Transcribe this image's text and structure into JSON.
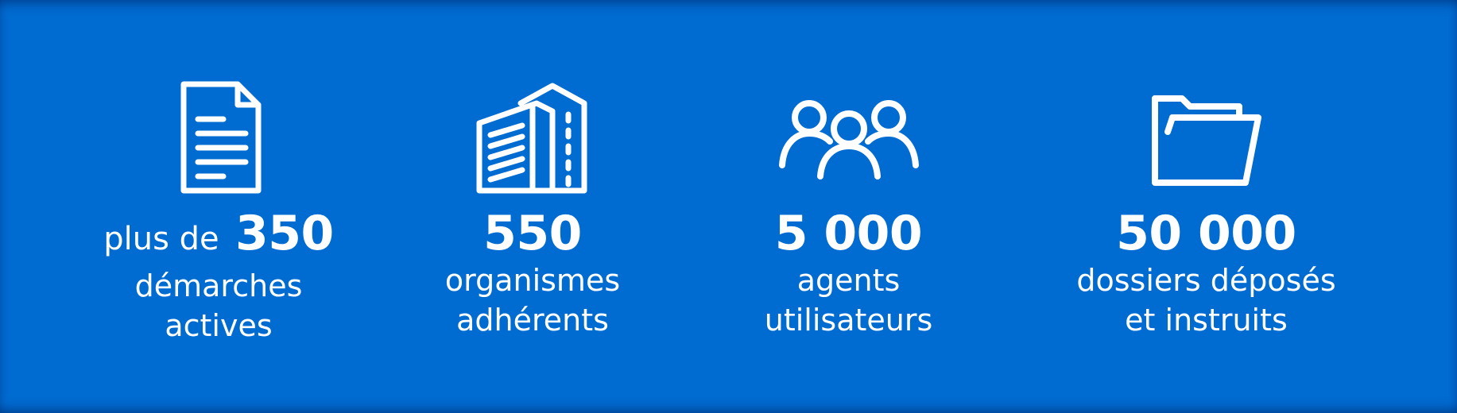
{
  "background_color": "#006bd1",
  "text_color": "#ffffff",
  "stats": [
    {
      "icon": "document-icon",
      "prefix": "plus de",
      "value": "350",
      "label_line1": "démarches",
      "label_line2": "actives"
    },
    {
      "icon": "building-icon",
      "prefix": "",
      "value": "550",
      "label_line1": "organismes",
      "label_line2": "adhérents"
    },
    {
      "icon": "users-icon",
      "prefix": "",
      "value": "5 000",
      "label_line1": "agents",
      "label_line2": "utilisateurs"
    },
    {
      "icon": "folder-icon",
      "prefix": "",
      "value": "50 000",
      "label_line1": "dossiers déposés",
      "label_line2": "et instruits"
    }
  ]
}
